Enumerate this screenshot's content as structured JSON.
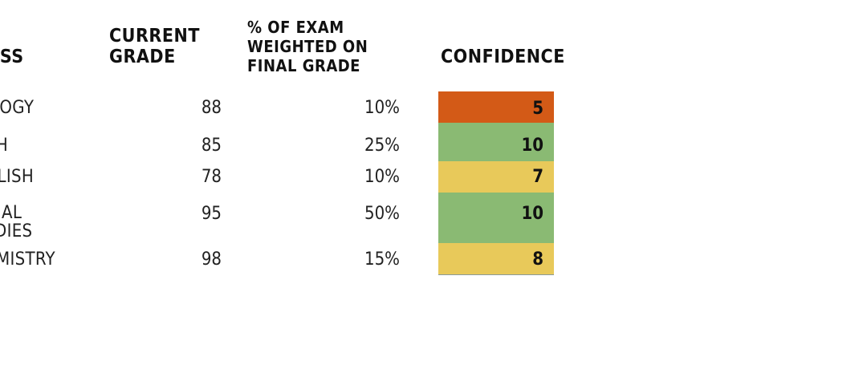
{
  "headers": {
    "class": "CLASS",
    "current_grade": "CURRENT\nGRADE",
    "exam_weight": "% OF EXAM\nWEIGHTED ON\nFINAL GRADE",
    "confidence": "CONFIDENCE"
  },
  "rows": [
    {
      "class": "BIOLOGY",
      "grade": "88",
      "weight": "10%",
      "confidence": "5",
      "color": "#d35a17"
    },
    {
      "class": "MATH",
      "grade": "85",
      "weight": "25%",
      "confidence": "10",
      "color": "#8aba73"
    },
    {
      "class": "ENGLISH",
      "grade": "78",
      "weight": "10%",
      "confidence": "7",
      "color": "#e8c95a"
    },
    {
      "class": "SOCIAL\nSTUDIES",
      "grade": "95",
      "weight": "50%",
      "confidence": "10",
      "color": "#8aba73"
    },
    {
      "class": "CHEMISTRY",
      "grade": "98",
      "weight": "15%",
      "confidence": "8",
      "color": "#e8c95a"
    }
  ]
}
